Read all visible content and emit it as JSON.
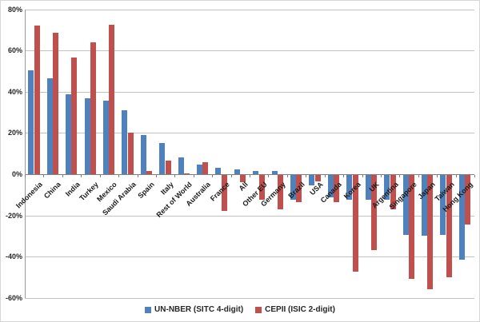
{
  "chart_data": {
    "type": "bar",
    "title": "",
    "xlabel": "",
    "ylabel": "",
    "categories": [
      "Indonesia",
      "China",
      "India",
      "Turkey",
      "Mexico",
      "Saudi Arabia",
      "Spain",
      "Italy",
      "Rest of World",
      "Australia",
      "France",
      "All",
      "Other EU",
      "Germany",
      "Brazil",
      "USA",
      "Canada",
      "Korea",
      "UK",
      "Argentina",
      "Singapore",
      "Japan",
      "Taiwan",
      "Hong Kong"
    ],
    "series": [
      {
        "name": "UN-NBER (SITC 4-digit)",
        "color": "#4F81BD",
        "values": [
          50.5,
          46.5,
          39,
          36.8,
          35.8,
          31,
          19,
          15,
          8,
          4.5,
          3,
          2.2,
          1.5,
          1.7,
          -12,
          -5,
          -11,
          -12,
          -12,
          -12,
          -29,
          -29.5,
          -29,
          -41
        ]
      },
      {
        "name": "CEPII (ISIC 2-digit)",
        "color": "#C0504D",
        "values": [
          72,
          68.5,
          56.5,
          64,
          72.5,
          20,
          1.5,
          6.5,
          0.5,
          6,
          -17.5,
          -3.5,
          -12,
          -16.5,
          -13,
          -3,
          -13,
          -47,
          -36.5,
          -16.5,
          -50.5,
          -55.5,
          -49.5,
          -24
        ]
      }
    ],
    "y_axis": {
      "min": -60,
      "max": 80,
      "step": 20,
      "unit": "%",
      "tick_labels": [
        "80%",
        "60%",
        "40%",
        "20%",
        "0%",
        "-20%",
        "-40%",
        "-60%"
      ]
    },
    "legend": {
      "position": "bottom-center",
      "entries": [
        "UN-NBER (SITC 4-digit)",
        "CEPII (ISIC 2-digit)"
      ]
    },
    "grid": "on",
    "colors": {
      "gridline": "#C3C3C3",
      "zero_axis": "#7F7F7F",
      "vertical_axis": "#9A9A9A",
      "text": "#262626",
      "background": "#FFFFFF"
    }
  }
}
